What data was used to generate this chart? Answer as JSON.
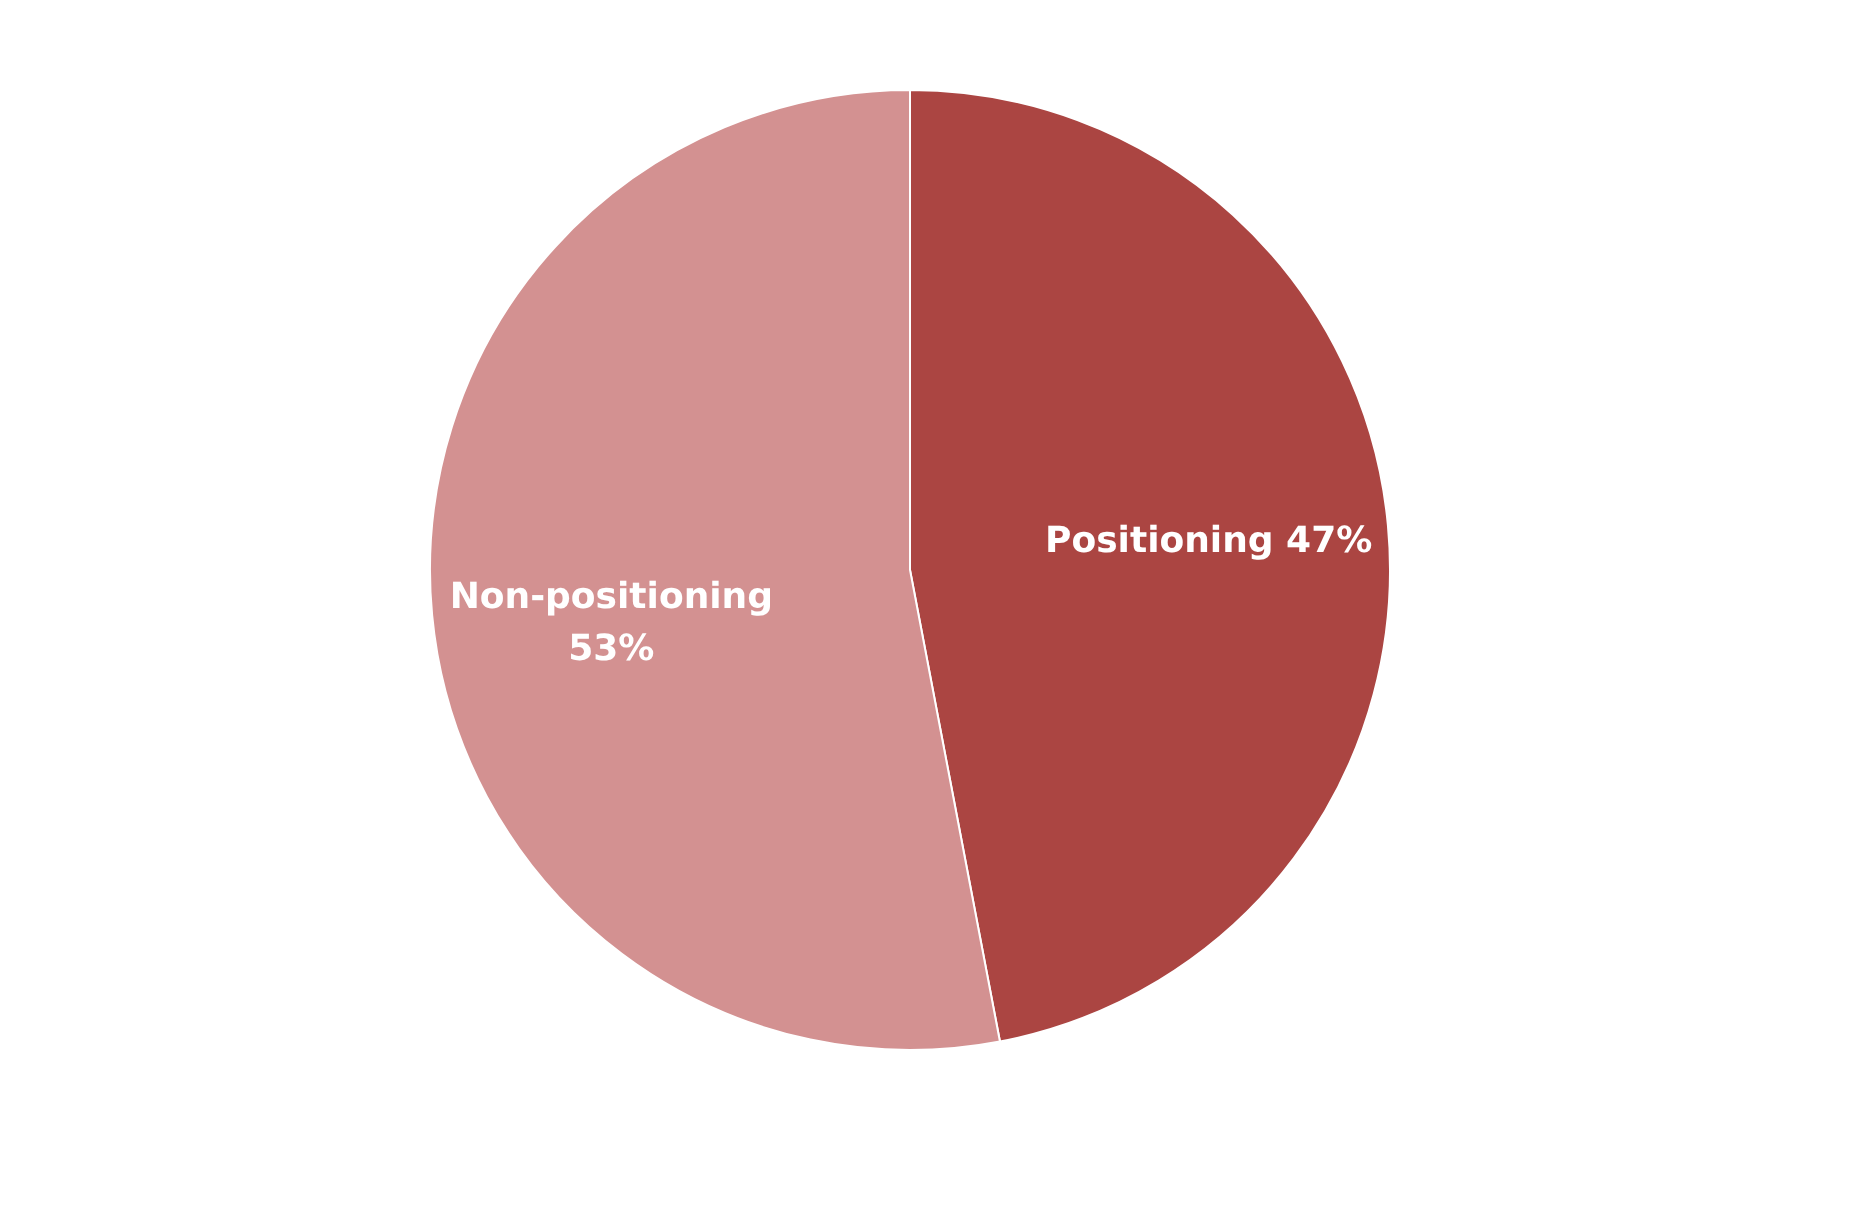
{
  "chart_data": {
    "type": "pie",
    "categories": [
      "Positioning",
      "Non-positioning"
    ],
    "values": [
      47,
      53
    ],
    "colors": [
      "#ab4542",
      "#d39191"
    ],
    "value_labels": [
      "47%",
      "53%"
    ],
    "legend": false
  }
}
